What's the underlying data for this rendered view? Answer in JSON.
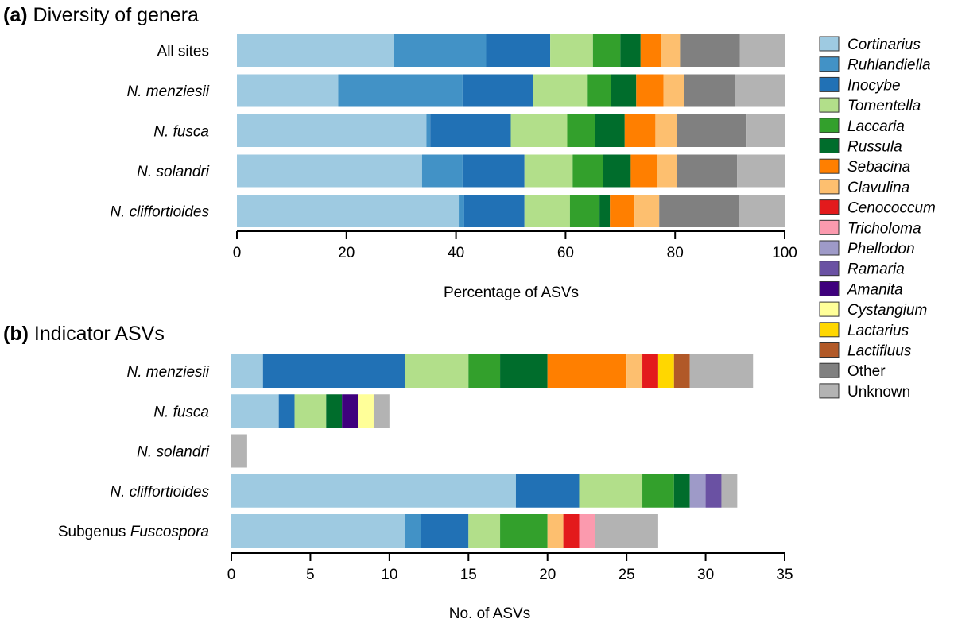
{
  "genera": [
    {
      "name": "Cortinarius",
      "color": "#9ecae1"
    },
    {
      "name": "Ruhlandiella",
      "color": "#4292c6"
    },
    {
      "name": "Inocybe",
      "color": "#2171b5"
    },
    {
      "name": "Tomentella",
      "color": "#b2df8a"
    },
    {
      "name": "Laccaria",
      "color": "#33a02c"
    },
    {
      "name": "Russula",
      "color": "#006d2c"
    },
    {
      "name": "Sebacina",
      "color": "#ff7f00"
    },
    {
      "name": "Clavulina",
      "color": "#fdbf6f"
    },
    {
      "name": "Cenococcum",
      "color": "#e31a1c"
    },
    {
      "name": "Tricholoma",
      "color": "#fb9aae"
    },
    {
      "name": "Phellodon",
      "color": "#9e9ac8"
    },
    {
      "name": "Ramaria",
      "color": "#6a51a3"
    },
    {
      "name": "Amanita",
      "color": "#3f007d"
    },
    {
      "name": "Cystangium",
      "color": "#ffff99"
    },
    {
      "name": "Lactarius",
      "color": "#ffd700"
    },
    {
      "name": "Lactifluus",
      "color": "#b15928"
    },
    {
      "name": "Other",
      "color": "#808080"
    },
    {
      "name": "Unknown",
      "color": "#b3b3b3"
    }
  ],
  "chart_data": [
    {
      "type": "bar",
      "orientation": "horizontal",
      "stacked": true,
      "panel": "(a)",
      "title": "Diversity of genera",
      "xlabel": "Percentage of ASVs",
      "xlim": [
        0,
        100
      ],
      "xticks": [
        0,
        20,
        40,
        60,
        80,
        100
      ],
      "categories": [
        {
          "pre": "",
          "it": "",
          "post": "All sites"
        },
        {
          "pre": "",
          "it": "N. menziesii",
          "post": ""
        },
        {
          "pre": "",
          "it": "N. fusca",
          "post": ""
        },
        {
          "pre": "",
          "it": "N. solandri",
          "post": ""
        },
        {
          "pre": "",
          "it": "N. cliffortioides",
          "post": ""
        }
      ],
      "series": [
        {
          "name": "Cortinarius",
          "values": [
            28.7,
            18.5,
            34.6,
            33.8,
            40.5
          ]
        },
        {
          "name": "Ruhlandiella",
          "values": [
            16.8,
            22.7,
            0.7,
            7.4,
            1.0
          ]
        },
        {
          "name": "Inocybe",
          "values": [
            11.7,
            12.8,
            14.7,
            11.3,
            11.0
          ]
        },
        {
          "name": "Tomentella",
          "values": [
            7.8,
            9.9,
            10.3,
            8.8,
            8.3
          ]
        },
        {
          "name": "Laccaria",
          "values": [
            5.0,
            4.4,
            5.1,
            5.6,
            5.4
          ]
        },
        {
          "name": "Russula",
          "values": [
            3.7,
            4.6,
            5.4,
            5.0,
            1.9
          ]
        },
        {
          "name": "Sebacina",
          "values": [
            3.8,
            5.0,
            5.6,
            4.8,
            4.5
          ]
        },
        {
          "name": "Clavulina",
          "values": [
            3.4,
            3.7,
            3.9,
            3.6,
            4.5
          ]
        },
        {
          "name": "Other",
          "values": [
            10.9,
            9.3,
            12.6,
            11.0,
            14.5
          ]
        },
        {
          "name": "Unknown",
          "values": [
            8.2,
            9.1,
            7.1,
            8.7,
            8.4
          ]
        }
      ]
    },
    {
      "type": "bar",
      "orientation": "horizontal",
      "stacked": true,
      "panel": "(b)",
      "title": "Indicator ASVs",
      "xlabel": "No. of ASVs",
      "xlim": [
        0,
        35
      ],
      "xticks": [
        0,
        5,
        10,
        15,
        20,
        25,
        30,
        35
      ],
      "categories": [
        {
          "pre": "",
          "it": "N. menziesii",
          "post": ""
        },
        {
          "pre": "",
          "it": "N. fusca",
          "post": ""
        },
        {
          "pre": "",
          "it": "N. solandri",
          "post": ""
        },
        {
          "pre": "",
          "it": "N. cliffortioides",
          "post": ""
        },
        {
          "pre": "Subgenus ",
          "it": "Fuscospora",
          "post": ""
        }
      ],
      "series": [
        {
          "name": "Cortinarius",
          "values": [
            2,
            3,
            0,
            18,
            11
          ]
        },
        {
          "name": "Ruhlandiella",
          "values": [
            0,
            0,
            0,
            0,
            1
          ]
        },
        {
          "name": "Inocybe",
          "values": [
            9,
            1,
            0,
            4,
            3
          ]
        },
        {
          "name": "Tomentella",
          "values": [
            4,
            2,
            0,
            4,
            2
          ]
        },
        {
          "name": "Laccaria",
          "values": [
            2,
            0,
            0,
            2,
            3
          ]
        },
        {
          "name": "Russula",
          "values": [
            3,
            1,
            0,
            1,
            0
          ]
        },
        {
          "name": "Sebacina",
          "values": [
            5,
            0,
            0,
            0,
            0
          ]
        },
        {
          "name": "Clavulina",
          "values": [
            1,
            0,
            0,
            0,
            1
          ]
        },
        {
          "name": "Cenococcum",
          "values": [
            1,
            0,
            0,
            0,
            1
          ]
        },
        {
          "name": "Tricholoma",
          "values": [
            0,
            0,
            0,
            0,
            1
          ]
        },
        {
          "name": "Phellodon",
          "values": [
            0,
            0,
            0,
            1,
            0
          ]
        },
        {
          "name": "Ramaria",
          "values": [
            0,
            0,
            0,
            1,
            0
          ]
        },
        {
          "name": "Amanita",
          "values": [
            0,
            1,
            0,
            0,
            0
          ]
        },
        {
          "name": "Cystangium",
          "values": [
            0,
            1,
            0,
            0,
            0
          ]
        },
        {
          "name": "Lactarius",
          "values": [
            1,
            0,
            0,
            0,
            0
          ]
        },
        {
          "name": "Lactifluus",
          "values": [
            1,
            0,
            0,
            0,
            0
          ]
        },
        {
          "name": "Other",
          "values": [
            0,
            0,
            0,
            0,
            0
          ]
        },
        {
          "name": "Unknown",
          "values": [
            4,
            1,
            1,
            1,
            4
          ]
        }
      ]
    }
  ]
}
